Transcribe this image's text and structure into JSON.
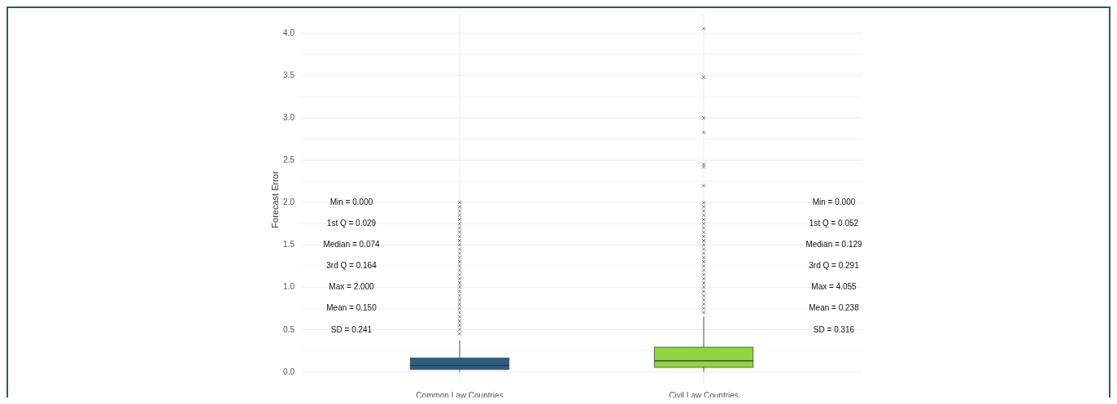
{
  "chart_data": {
    "type": "box",
    "ylabel": "Forecast Error",
    "categories": [
      "Common Law Countries",
      "Civil Law Countries"
    ],
    "colors": [
      "#2b5f82",
      "#8fd641"
    ],
    "boxes": [
      {
        "low": 0,
        "q1": 0.029,
        "median": 0.074,
        "q3": 0.164,
        "high": 0.37,
        "outliers": [
          0.45,
          0.5,
          0.55,
          0.6,
          0.65,
          0.7,
          0.75,
          0.8,
          0.85,
          0.9,
          0.95,
          1.0,
          1.05,
          1.1,
          1.15,
          1.2,
          1.25,
          1.3,
          1.35,
          1.4,
          1.45,
          1.5,
          1.55,
          1.6,
          1.65,
          1.7,
          1.75,
          1.8,
          1.85,
          1.9,
          1.95,
          2.0
        ]
      },
      {
        "low": 0,
        "q1": 0.052,
        "median": 0.129,
        "q3": 0.291,
        "high": 0.65,
        "outliers": [
          0.7,
          0.75,
          0.8,
          0.85,
          0.9,
          0.95,
          1.0,
          1.05,
          1.1,
          1.15,
          1.2,
          1.25,
          1.3,
          1.35,
          1.4,
          1.45,
          1.5,
          1.55,
          1.6,
          1.65,
          1.7,
          1.75,
          1.8,
          1.85,
          1.9,
          1.95,
          2.0,
          2.2,
          2.42,
          2.45,
          2.83,
          3.0,
          3.48,
          4.055
        ]
      }
    ],
    "ylim": [
      -0.15,
      4.22
    ],
    "yticks": [
      {
        "value": 0,
        "label": "0.0"
      },
      {
        "value": 0.5,
        "label": "0.5"
      },
      {
        "value": 1,
        "label": "1.0"
      },
      {
        "value": 1.5,
        "label": "1.5"
      },
      {
        "value": 2,
        "label": "2.0"
      },
      {
        "value": 2.5,
        "label": "2.5"
      },
      {
        "value": 3,
        "label": "3.0"
      },
      {
        "value": 3.5,
        "label": "3.5"
      },
      {
        "value": 4,
        "label": "4.0"
      }
    ],
    "grid": true,
    "annotations": [
      "Min = 0.000",
      "1st Q = 0.029",
      "Median = 0.074",
      "3rd Q = 0.164",
      "Max = 2.000",
      "Mean = 0.150",
      "SD = 0.241",
      "Min = 0.000",
      "1st Q = 0.052",
      "Median = 0.129",
      "3rd Q = 0.291",
      "Max = 4.055",
      "Mean = 0.238",
      "SD = 0.316"
    ]
  }
}
